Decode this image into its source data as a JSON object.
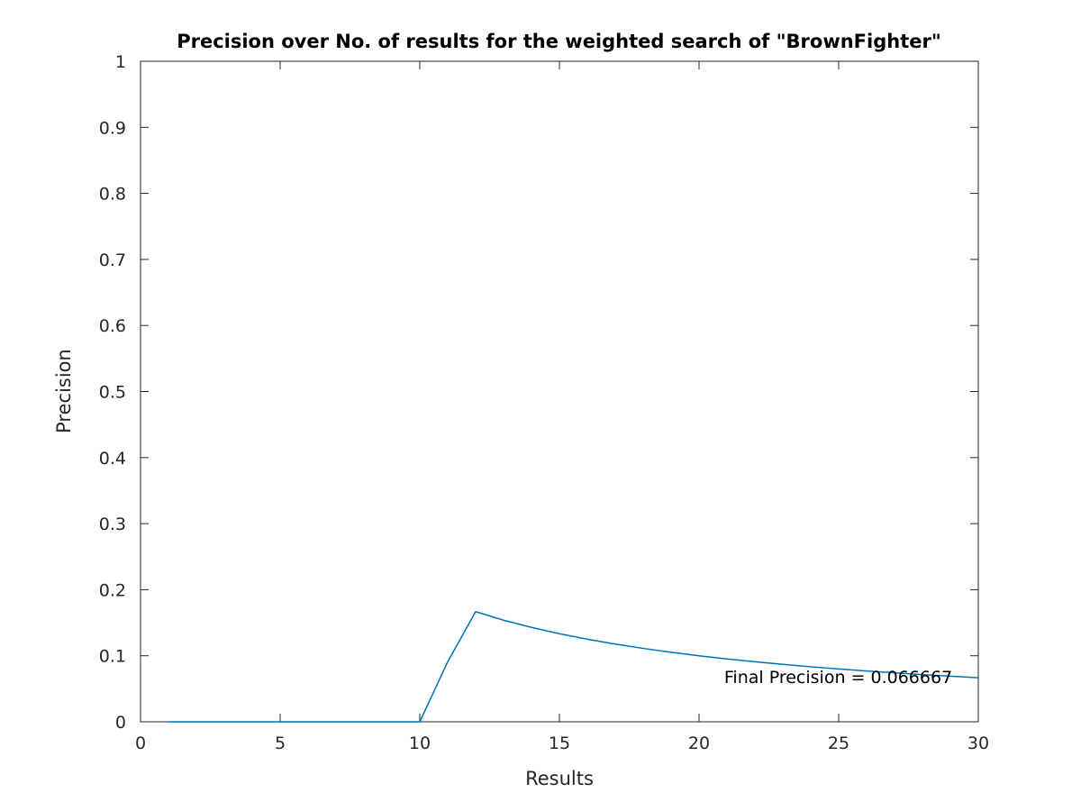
{
  "chart_data": {
    "type": "line",
    "title": "Precision over No. of results for the weighted search of \"BrownFighter\"",
    "xlabel": "Results",
    "ylabel": "Precision",
    "xlim": [
      0,
      30
    ],
    "ylim": [
      0,
      1
    ],
    "xticks": [
      "0",
      "5",
      "10",
      "15",
      "20",
      "25",
      "30"
    ],
    "yticks": [
      "0",
      "0.1",
      "0.2",
      "0.3",
      "0.4",
      "0.5",
      "0.6",
      "0.7",
      "0.8",
      "0.9",
      "1"
    ],
    "grid": false,
    "series": [
      {
        "color": "#0072bd",
        "x": [
          1,
          2,
          3,
          4,
          5,
          6,
          7,
          8,
          9,
          10,
          11,
          12,
          13,
          14,
          15,
          16,
          17,
          18,
          19,
          20,
          21,
          22,
          23,
          24,
          25,
          26,
          27,
          28,
          29,
          30
        ],
        "y": [
          0,
          0,
          0,
          0,
          0,
          0,
          0,
          0,
          0,
          0,
          0.0909,
          0.1667,
          0.1538,
          0.1429,
          0.1333,
          0.125,
          0.1176,
          0.1111,
          0.1053,
          0.1,
          0.0952,
          0.0909,
          0.087,
          0.0833,
          0.08,
          0.0769,
          0.0741,
          0.0714,
          0.069,
          0.0667
        ]
      }
    ],
    "annotations": [
      {
        "text": "Final Precision = 0.066667",
        "x": 20.9,
        "y": 0.0667
      }
    ]
  },
  "colors": {
    "axes": "#262626",
    "line": "#0072bd"
  }
}
